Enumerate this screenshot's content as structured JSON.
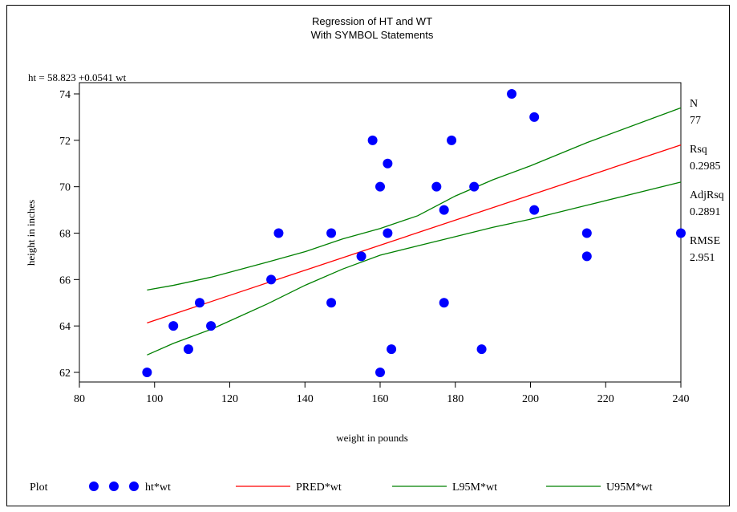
{
  "chart_data": {
    "type": "scatter",
    "title": "Regression of HT and WT",
    "subtitle": "With SYMBOL Statements",
    "equation": "ht = 58.823 +0.0541 wt",
    "xlabel": "weight in pounds",
    "ylabel": "height in inches",
    "xlim": [
      80,
      240
    ],
    "ylim": [
      62,
      74
    ],
    "xticks": [
      80,
      100,
      120,
      140,
      160,
      180,
      200,
      220,
      240
    ],
    "yticks": [
      62,
      64,
      66,
      68,
      70,
      72,
      74
    ],
    "grid": false,
    "stats": [
      {
        "label": "N",
        "value": "77"
      },
      {
        "label": "Rsq",
        "value": "0.2985"
      },
      {
        "label": "AdjRsq",
        "value": "0.2891"
      },
      {
        "label": "RMSE",
        "value": "2.951"
      }
    ],
    "points": [
      [
        98,
        62
      ],
      [
        105,
        64
      ],
      [
        109,
        63
      ],
      [
        112,
        65
      ],
      [
        115,
        64
      ],
      [
        131,
        66
      ],
      [
        133,
        68
      ],
      [
        147,
        68
      ],
      [
        147,
        65
      ],
      [
        155,
        67
      ],
      [
        158,
        72
      ],
      [
        160,
        70
      ],
      [
        160,
        62
      ],
      [
        162,
        71
      ],
      [
        162,
        68
      ],
      [
        163,
        63
      ],
      [
        175,
        70
      ],
      [
        177,
        69
      ],
      [
        177,
        65
      ],
      [
        179,
        72
      ],
      [
        185,
        70
      ],
      [
        187,
        63
      ],
      [
        195,
        74
      ],
      [
        201,
        73
      ],
      [
        201,
        69
      ],
      [
        215,
        68
      ],
      [
        215,
        67
      ],
      [
        240,
        68
      ]
    ],
    "pred": [
      [
        98,
        64.13
      ],
      [
        240,
        71.8
      ]
    ],
    "l95": [
      [
        98,
        62.75
      ],
      [
        105,
        63.25
      ],
      [
        115,
        63.85
      ],
      [
        130,
        64.95
      ],
      [
        140,
        65.75
      ],
      [
        150,
        66.45
      ],
      [
        160,
        67.05
      ],
      [
        170,
        67.45
      ],
      [
        180,
        67.85
      ],
      [
        190,
        68.25
      ],
      [
        200,
        68.6
      ],
      [
        215,
        69.2
      ],
      [
        240,
        70.2
      ]
    ],
    "u95": [
      [
        98,
        65.55
      ],
      [
        105,
        65.75
      ],
      [
        115,
        66.1
      ],
      [
        130,
        66.75
      ],
      [
        140,
        67.2
      ],
      [
        150,
        67.75
      ],
      [
        160,
        68.2
      ],
      [
        170,
        68.75
      ],
      [
        180,
        69.6
      ],
      [
        190,
        70.3
      ],
      [
        200,
        70.9
      ],
      [
        215,
        71.9
      ],
      [
        240,
        73.4
      ]
    ],
    "colors": {
      "points": "#0000ff",
      "pred": "#ff0000",
      "limits": "#008000"
    },
    "legend": {
      "placement": "bottom",
      "title": "Plot",
      "items": [
        {
          "label": "ht*wt",
          "kind": "symbol",
          "color": "#0000ff"
        },
        {
          "label": "PRED*wt",
          "kind": "line",
          "color": "#ff0000"
        },
        {
          "label": "L95M*wt",
          "kind": "line",
          "color": "#008000"
        },
        {
          "label": "U95M*wt",
          "kind": "line",
          "color": "#008000"
        }
      ]
    }
  }
}
